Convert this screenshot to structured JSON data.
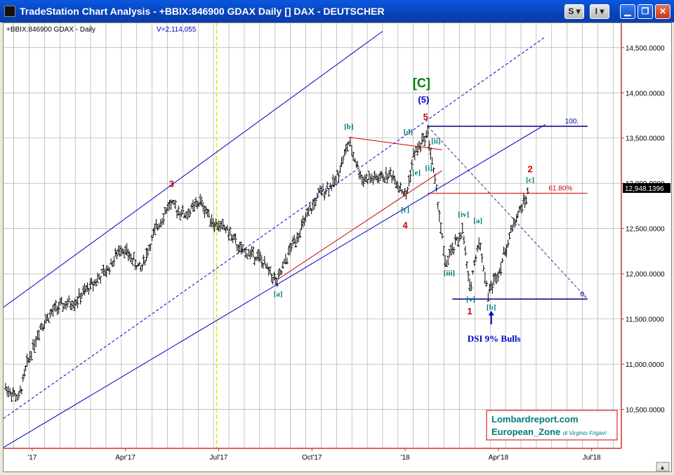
{
  "window": {
    "title": "TradeStation Chart Analysis - +BBIX:846900 GDAX Daily [] DAX - DEUTSCHER",
    "menu_buttons": [
      "S",
      "I"
    ]
  },
  "chart_header": {
    "symbol_label": "+BBIX:846900 GDAX - Daily",
    "volume_label": "V=2,114,055"
  },
  "chart_data": {
    "type": "bar",
    "title": "",
    "xlabel": "",
    "ylabel": "",
    "x_ticks": [
      "'17",
      "Apr'17",
      "Jul'17",
      "Oct'17",
      "'18",
      "Apr'18",
      "Jul'18"
    ],
    "y_ticks": [
      10500,
      11000,
      11500,
      12000,
      12500,
      13000,
      13500,
      14000,
      14500
    ],
    "y_tick_labels": [
      "10,500.0000",
      "11,000.0000",
      "11,500.0000",
      "12,000.0000",
      "12,500.0000",
      "13,000.0000",
      "13,500.0000",
      "14,000.0000",
      "14,500.0000"
    ],
    "ylim": [
      10070,
      14770
    ],
    "xlim": [
      "2016-12-05",
      "2018-07-31"
    ],
    "grid": true,
    "series": [
      {
        "values": [
          {
            "x": "2016-12-07",
            "y": 10740
          },
          {
            "x": "2016-12-20",
            "y": 10620
          },
          {
            "x": "2016-12-28",
            "y": 11000
          },
          {
            "x": "2017-01-10",
            "y": 11420
          },
          {
            "x": "2017-01-25",
            "y": 11620
          },
          {
            "x": "2017-02-14",
            "y": 11700
          },
          {
            "x": "2017-03-01",
            "y": 11880
          },
          {
            "x": "2017-03-17",
            "y": 12050
          },
          {
            "x": "2017-03-30",
            "y": 12300
          },
          {
            "x": "2017-04-18",
            "y": 12050
          },
          {
            "x": "2017-05-03",
            "y": 12500
          },
          {
            "x": "2017-05-16",
            "y": 12770
          },
          {
            "x": "2017-06-01",
            "y": 12650
          },
          {
            "x": "2017-06-15",
            "y": 12800
          },
          {
            "x": "2017-06-29",
            "y": 12550
          },
          {
            "x": "2017-07-10",
            "y": 12500
          },
          {
            "x": "2017-07-25",
            "y": 12250
          },
          {
            "x": "2017-08-10",
            "y": 12200
          },
          {
            "x": "2017-08-29",
            "y": 11900
          },
          {
            "x": "2017-09-12",
            "y": 12300
          },
          {
            "x": "2017-09-26",
            "y": 12600
          },
          {
            "x": "2017-10-10",
            "y": 12900
          },
          {
            "x": "2017-10-24",
            "y": 13000
          },
          {
            "x": "2017-11-07",
            "y": 13450
          },
          {
            "x": "2017-11-20",
            "y": 13050
          },
          {
            "x": "2017-12-05",
            "y": 13050
          },
          {
            "x": "2017-12-19",
            "y": 13100
          },
          {
            "x": "2018-01-02",
            "y": 12850
          },
          {
            "x": "2018-01-09",
            "y": 13300
          },
          {
            "x": "2018-01-23",
            "y": 13560
          },
          {
            "x": "2018-02-02",
            "y": 12800
          },
          {
            "x": "2018-02-09",
            "y": 12100
          },
          {
            "x": "2018-02-26",
            "y": 12480
          },
          {
            "x": "2018-03-05",
            "y": 11830
          },
          {
            "x": "2018-03-14",
            "y": 12380
          },
          {
            "x": "2018-03-23",
            "y": 11780
          },
          {
            "x": "2018-04-03",
            "y": 12050
          },
          {
            "x": "2018-04-17",
            "y": 12560
          },
          {
            "x": "2018-05-02",
            "y": 12910
          }
        ]
      }
    ],
    "last_price_label": "12,948.1396",
    "fib_labels": [
      "100.",
      "61.80%",
      "0."
    ],
    "wave_labels": [
      {
        "text": "3",
        "color": "#cc0000",
        "x": "2017-05-18",
        "y": 12960
      },
      {
        "text": "[a]",
        "color": "#007a7a",
        "x": "2017-08-30",
        "y": 11750
      },
      {
        "text": "[b]",
        "color": "#007a7a",
        "x": "2017-11-07",
        "y": 13600
      },
      {
        "text": "[c]",
        "color": "#007a7a",
        "x": "2018-01-01",
        "y": 12680
      },
      {
        "text": "4",
        "color": "#cc0000",
        "x": "2018-01-01",
        "y": 12500
      },
      {
        "text": "[d]",
        "color": "#007a7a",
        "x": "2018-01-04",
        "y": 13540
      },
      {
        "text": "[e]",
        "color": "#007a7a",
        "x": "2018-01-12",
        "y": 13090
      },
      {
        "text": "[i]",
        "color": "#007a7a",
        "x": "2018-01-24",
        "y": 13140
      },
      {
        "text": "[ii]",
        "color": "#007a7a",
        "x": "2018-01-31",
        "y": 13440
      },
      {
        "text": "5",
        "color": "#cc0000",
        "x": "2018-01-21",
        "y": 13700
      },
      {
        "text": "(5)",
        "color": "#0000cc",
        "x": "2018-01-19",
        "y": 13890
      },
      {
        "text": "[C]",
        "color": "#008000",
        "x": "2018-01-17",
        "y": 14060
      },
      {
        "text": "[iii]",
        "color": "#007a7a",
        "x": "2018-02-13",
        "y": 11980
      },
      {
        "text": "[iv]",
        "color": "#007a7a",
        "x": "2018-02-27",
        "y": 12630
      },
      {
        "text": "[v]",
        "color": "#007a7a",
        "x": "2018-03-06",
        "y": 11690
      },
      {
        "text": "1",
        "color": "#cc0000",
        "x": "2018-03-05",
        "y": 11550
      },
      {
        "text": "[a]",
        "color": "#007a7a",
        "x": "2018-03-13",
        "y": 12560
      },
      {
        "text": "[b]",
        "color": "#007a7a",
        "x": "2018-03-26",
        "y": 11600
      },
      {
        "text": "[c]",
        "color": "#007a7a",
        "x": "2018-05-03",
        "y": 13010
      },
      {
        "text": "2",
        "color": "#cc0000",
        "x": "2018-05-03",
        "y": 13120
      }
    ],
    "annotation": "DSI 9% Bulls"
  },
  "watermark": {
    "line1": "Lombardreport.com",
    "line2": "European_Zone",
    "line3": "di Virginio Frigieri"
  },
  "colors": {
    "channel": "#0000cc",
    "grid": "#a0a0a0",
    "price_axis": "#cc3333",
    "fib_red": "#cc0000",
    "wave_teal": "#007a7a",
    "wave_red": "#cc0000",
    "wave_green": "#008000",
    "vertical_marker": "#e6e600"
  }
}
